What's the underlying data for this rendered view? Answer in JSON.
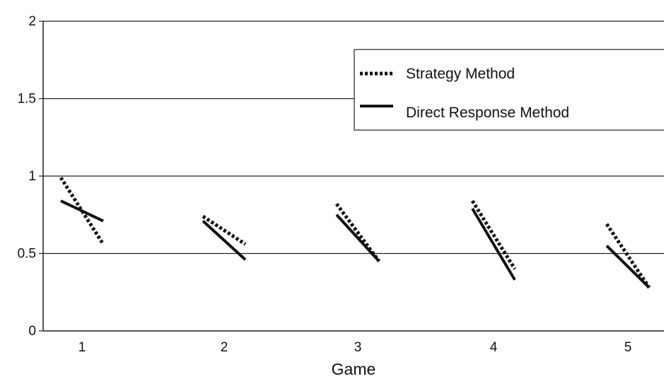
{
  "chart_data": {
    "type": "line",
    "title": "",
    "xlabel": "Game",
    "ylabel": "",
    "categories": [
      "1",
      "2",
      "3",
      "4",
      "5"
    ],
    "ylim": [
      0,
      2
    ],
    "yticks": [
      "0",
      "0.5",
      "1",
      "1.5",
      "2"
    ],
    "grid": "horizontal",
    "legend_position": "top-right",
    "series": [
      {
        "name": "Strategy Method",
        "style": "dotted",
        "segments": [
          {
            "game": "1",
            "start": 0.99,
            "end": 0.56
          },
          {
            "game": "2",
            "start": 0.74,
            "end": 0.56
          },
          {
            "game": "3",
            "start": 0.82,
            "end": 0.45
          },
          {
            "game": "4",
            "start": 0.84,
            "end": 0.4
          },
          {
            "game": "5",
            "start": 0.69,
            "end": 0.28
          }
        ]
      },
      {
        "name": "Direct Response Method",
        "style": "solid",
        "segments": [
          {
            "game": "1",
            "start": 0.84,
            "end": 0.71
          },
          {
            "game": "2",
            "start": 0.71,
            "end": 0.46
          },
          {
            "game": "3",
            "start": 0.75,
            "end": 0.45
          },
          {
            "game": "4",
            "start": 0.79,
            "end": 0.33
          },
          {
            "game": "5",
            "start": 0.55,
            "end": 0.28
          }
        ]
      }
    ],
    "colors": {
      "lines": "#111111",
      "grid": "#222222",
      "background": "#ffffff"
    }
  }
}
